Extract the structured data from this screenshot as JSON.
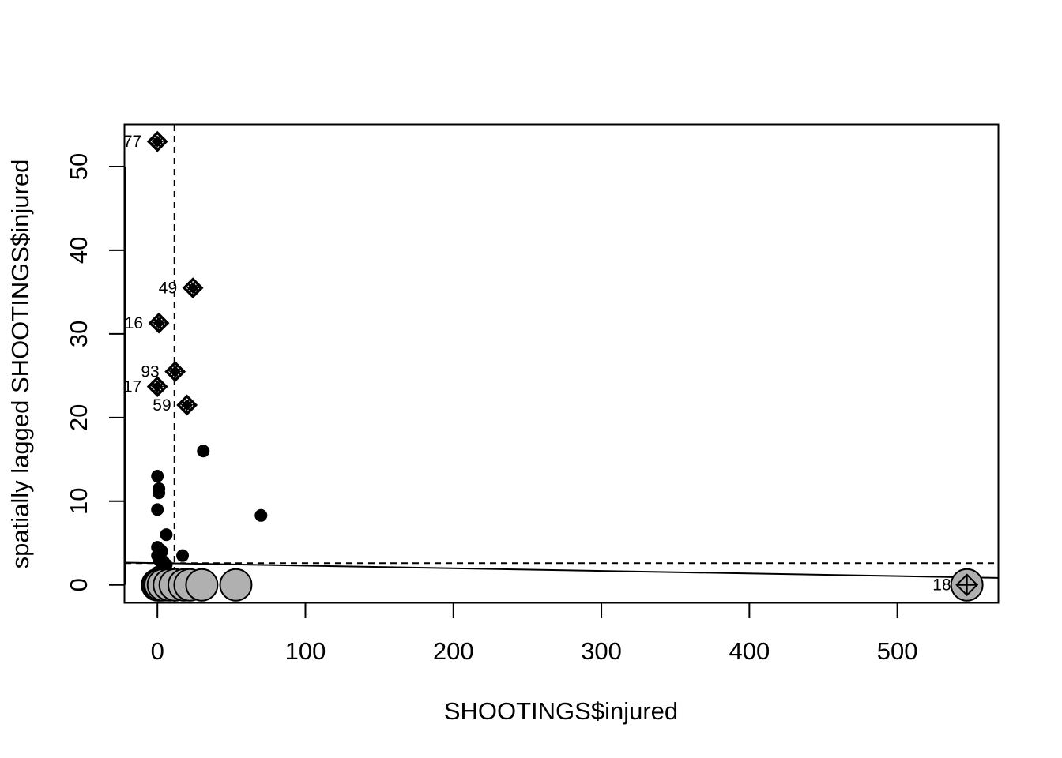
{
  "chart_data": {
    "type": "scatter",
    "title": "",
    "xlabel": "SHOOTINGS$injured",
    "ylabel": "spatially lagged SHOOTINGS$injured",
    "xlim": [
      -22,
      568
    ],
    "ylim": [
      -2.1,
      55
    ],
    "xticks": [
      {
        "value": 0,
        "label": "0"
      },
      {
        "value": 100,
        "label": "100"
      },
      {
        "value": 200,
        "label": "200"
      },
      {
        "value": 300,
        "label": "300"
      },
      {
        "value": 400,
        "label": "400"
      },
      {
        "value": 500,
        "label": "500"
      }
    ],
    "yticks": [
      {
        "value": 0,
        "label": "0"
      },
      {
        "value": 10,
        "label": "10"
      },
      {
        "value": 20,
        "label": "20"
      },
      {
        "value": 30,
        "label": "30"
      },
      {
        "value": 40,
        "label": "40"
      },
      {
        "value": 50,
        "label": "50"
      }
    ],
    "mean_x": 11.5,
    "mean_y": 2.6,
    "regression_line": {
      "intercept": 2.6,
      "slope": -0.0031
    },
    "points": [
      {
        "x": 0,
        "y": 13.0
      },
      {
        "x": 0,
        "y": 9.0
      },
      {
        "x": 1,
        "y": 11.5
      },
      {
        "x": 1,
        "y": 11.0
      },
      {
        "x": 31,
        "y": 16.0
      },
      {
        "x": 70,
        "y": 8.3
      },
      {
        "x": 6,
        "y": 6.0
      },
      {
        "x": 17,
        "y": 3.5
      },
      {
        "x": 0,
        "y": 4.5
      },
      {
        "x": 2,
        "y": 4.2
      },
      {
        "x": 3,
        "y": 4.0
      },
      {
        "x": 0,
        "y": 3.5
      },
      {
        "x": 1,
        "y": 3.0
      },
      {
        "x": 4,
        "y": 2.8
      },
      {
        "x": 6,
        "y": 2.4
      },
      {
        "x": 3,
        "y": 2.0
      },
      {
        "x": 0,
        "y": 1.5
      },
      {
        "x": 2,
        "y": 1.2
      },
      {
        "x": 1,
        "y": 0.8
      },
      {
        "x": 5,
        "y": 1.8
      }
    ],
    "low_points": [
      {
        "x": 0,
        "y": 0
      },
      {
        "x": 1,
        "y": 0
      },
      {
        "x": 2,
        "y": 0
      },
      {
        "x": 4,
        "y": 0
      },
      {
        "x": 8,
        "y": 0
      },
      {
        "x": 12,
        "y": 0
      },
      {
        "x": 18,
        "y": 0
      },
      {
        "x": 22,
        "y": 0
      },
      {
        "x": 30,
        "y": 0
      },
      {
        "x": 53,
        "y": 0
      }
    ],
    "influential": [
      {
        "label": "77",
        "x": 0,
        "y": 53.0
      },
      {
        "label": "49",
        "x": 24,
        "y": 35.5
      },
      {
        "label": "16",
        "x": 1,
        "y": 31.3
      },
      {
        "label": "93",
        "x": 12,
        "y": 25.5
      },
      {
        "label": "17",
        "x": 0,
        "y": 23.7
      },
      {
        "label": "59",
        "x": 20,
        "y": 21.5
      },
      {
        "label": "18",
        "x": 547,
        "y": 0
      }
    ],
    "colors": {
      "points": "#000000",
      "low_points_fill": "#b0b0b0",
      "axis": "#000000"
    }
  }
}
